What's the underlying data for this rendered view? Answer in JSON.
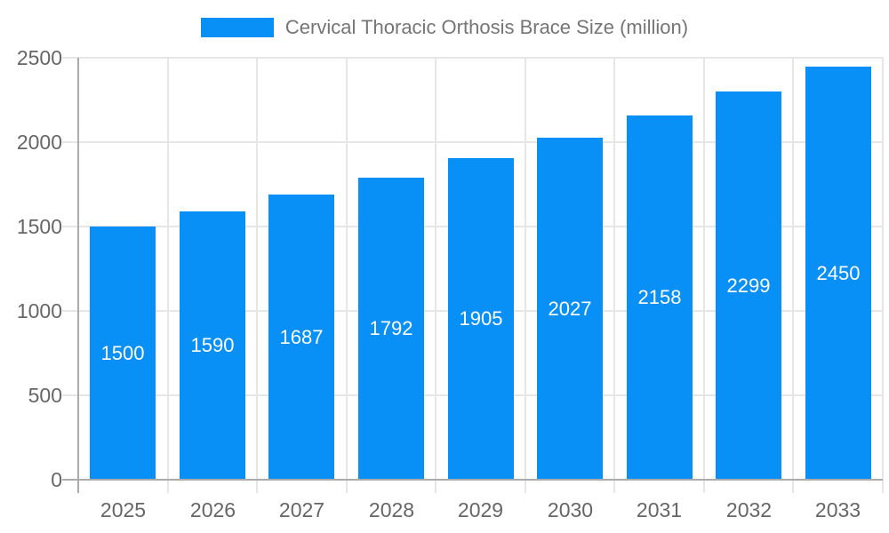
{
  "legend": {
    "label": "Cervical Thoracic Orthosis Brace Size (million)"
  },
  "chart_data": {
    "type": "bar",
    "title": "Cervical Thoracic Orthosis Brace Size (million)",
    "categories": [
      "2025",
      "2026",
      "2027",
      "2028",
      "2029",
      "2030",
      "2031",
      "2032",
      "2033"
    ],
    "series": [
      {
        "name": "Cervical Thoracic Orthosis Brace Size (million)",
        "values": [
          1500,
          1590,
          1687,
          1792,
          1905,
          2027,
          2158,
          2299,
          2450
        ]
      }
    ],
    "xlabel": "",
    "ylabel": "",
    "ylim": [
      0,
      2500
    ],
    "yticks": [
      "0",
      "500",
      "1000",
      "1500",
      "2000",
      "2500"
    ],
    "grid": true,
    "legend_position": "top",
    "value_labels_inside_bars": true,
    "colors": {
      "bar": "#0990F6",
      "value_label": "#FFFFFF",
      "axis_line": "#ABABAB",
      "gridline": "#E6E6E6",
      "tick_label": "#666666",
      "legend_text": "#757575",
      "background": "#FFFFFF"
    }
  }
}
